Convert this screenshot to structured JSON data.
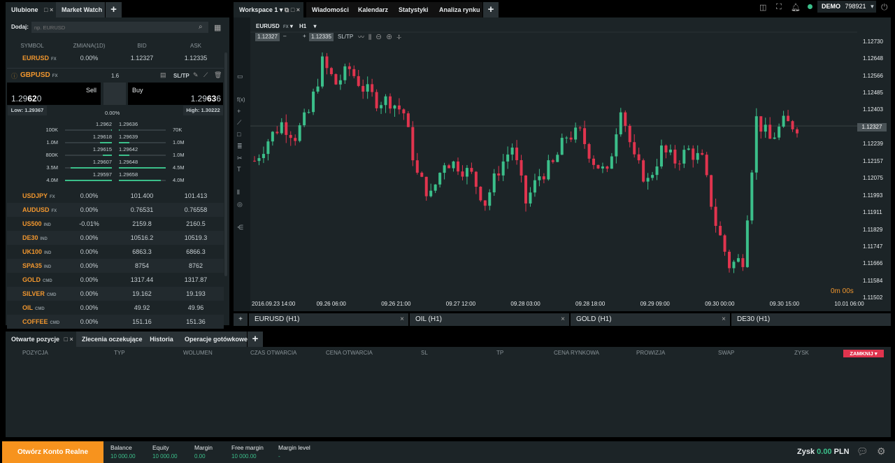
{
  "left_panel": {
    "tabs": [
      {
        "label": "Ulubione"
      },
      {
        "label": "Market Watch"
      }
    ],
    "add_label": "Dodaj:",
    "search_placeholder": "np. EURUSD",
    "columns": [
      "SYMBOL",
      "ZMIANA(1D)",
      "BID",
      "ASK"
    ],
    "first": {
      "symbol": "EURUSD",
      "type": "FX",
      "change": "0.00%",
      "bid": "1.12327",
      "ask": "1.12335"
    },
    "expanded": {
      "symbol": "GBPUSD",
      "type": "FX",
      "spread": "1.6",
      "sltp": "SL/TP",
      "sell_label": "Sell",
      "buy_label": "Buy",
      "sell_pre": "1.29",
      "sell_big": "62",
      "sell_post": "0",
      "buy_pre": "1.29",
      "buy_big": "63",
      "buy_post": "6",
      "low": "Low: 1.29367",
      "high": "High: 1.30222",
      "change": "0.00%",
      "book": [
        {
          "bid_vol": "100K",
          "bid": "1.2962",
          "ask": "1.29636",
          "ask_vol": "70K",
          "bid_fill": 0.02,
          "ask_fill": 0.02
        },
        {
          "bid_vol": "1.0M",
          "bid": "1.29618",
          "ask": "1.29639",
          "ask_vol": "1.0M",
          "bid_fill": 0.25,
          "ask_fill": 0.22
        },
        {
          "bid_vol": "800K",
          "bid": "1.29615",
          "ask": "1.29642",
          "ask_vol": "1.0M",
          "bid_fill": 0.2,
          "ask_fill": 0.22
        },
        {
          "bid_vol": "3.5M",
          "bid": "1.29607",
          "ask": "1.29648",
          "ask_vol": "4.5M",
          "bid_fill": 0.88,
          "ask_fill": 1.0
        },
        {
          "bid_vol": "4.0M",
          "bid": "1.29597",
          "ask": "1.29658",
          "ask_vol": "4.0M",
          "bid_fill": 1.0,
          "ask_fill": 0.89
        }
      ]
    },
    "rows": [
      {
        "symbol": "USDJPY",
        "type": "FX",
        "change": "0.00%",
        "bid": "101.400",
        "ask": "101.413"
      },
      {
        "symbol": "AUDUSD",
        "type": "FX",
        "change": "0.00%",
        "bid": "0.76531",
        "ask": "0.76558"
      },
      {
        "symbol": "US500",
        "type": "IND",
        "change": "-0.01%",
        "bid": "2159.8",
        "ask": "2160.5"
      },
      {
        "symbol": "DE30",
        "type": "IND",
        "change": "0.00%",
        "bid": "10516.2",
        "ask": "10519.3"
      },
      {
        "symbol": "UK100",
        "type": "IND",
        "change": "0.00%",
        "bid": "6863.3",
        "ask": "6866.3"
      },
      {
        "symbol": "SPA35",
        "type": "IND",
        "change": "0.00%",
        "bid": "8754",
        "ask": "8762"
      },
      {
        "symbol": "GOLD",
        "type": "CMD",
        "change": "0.00%",
        "bid": "1317.44",
        "ask": "1317.87"
      },
      {
        "symbol": "SILVER",
        "type": "CMD",
        "change": "0.00%",
        "bid": "19.162",
        "ask": "19.193"
      },
      {
        "symbol": "OIL",
        "type": "CMD",
        "change": "0.00%",
        "bid": "49.92",
        "ask": "49.96"
      },
      {
        "symbol": "COFFEE",
        "type": "CMD",
        "change": "0.00%",
        "bid": "151.16",
        "ask": "151.36"
      }
    ]
  },
  "top_tabs": [
    {
      "label": "Workspace 1"
    },
    {
      "label": "Wiadomości"
    },
    {
      "label": "Kalendarz"
    },
    {
      "label": "Statystyki"
    },
    {
      "label": "Analiza rynku"
    }
  ],
  "account": {
    "mode": "DEMO",
    "number": "798921",
    "status_color": "#3bbf8a"
  },
  "chart": {
    "symbol": "EURUSD",
    "type": "FX",
    "interval": "H1",
    "sell": "1.12327",
    "buy": "1.12335",
    "sltp": "SL/TP",
    "current_price": "1.12327",
    "timer": "0m 00s",
    "y_labels": [
      "1.12730",
      "1.12648",
      "1.12566",
      "1.12485",
      "1.12403",
      "1.12327",
      "1.12239",
      "1.12157",
      "1.12075",
      "1.11993",
      "1.11911",
      "1.11829",
      "1.11747",
      "1.11666",
      "1.11584",
      "1.11502"
    ],
    "x_labels": [
      "2016.09.23 14:00",
      "09.26 06:00",
      "09.26 21:00",
      "09.27 12:00",
      "09.28 03:00",
      "09.28 18:00",
      "09.29 09:00",
      "09.30 00:00",
      "09.30 15:00",
      "10.01 06:00"
    ],
    "closes": [
      1.1216,
      1.1226,
      1.1234,
      1.1228,
      1.1239,
      1.1263,
      1.1253,
      1.126,
      1.1251,
      1.1245,
      1.1245,
      1.1239,
      1.1209,
      1.1199,
      1.1216,
      1.1214,
      1.1209,
      1.1196,
      1.1212,
      1.1223,
      1.1196,
      1.1209,
      1.1214,
      1.1228,
      1.1229,
      1.1216,
      1.1209,
      1.1243,
      1.1216,
      1.1206,
      1.1221,
      1.1216,
      1.1221,
      1.1216,
      1.1186,
      1.1166,
      1.1169,
      1.1236,
      1.1226,
      1.1234,
      1.12327
    ],
    "up_color": "#3bbf8a",
    "down_color": "#e0344e",
    "tabs": [
      {
        "label": "EURUSD (H1)"
      },
      {
        "label": "OIL (H1)"
      },
      {
        "label": "GOLD (H1)"
      },
      {
        "label": "DE30 (H1)"
      }
    ]
  },
  "positions": {
    "tabs": [
      {
        "label": "Otwarte pozycje"
      },
      {
        "label": "Zlecenia oczekujące"
      },
      {
        "label": "Historia"
      },
      {
        "label": "Operacje gotówkowe"
      }
    ],
    "columns": [
      "POZYCJA",
      "TYP",
      "WOLUMEN",
      "CZAS OTWARCIA",
      "CENA OTWARCIA",
      "SL",
      "TP",
      "CENA RYNKOWA",
      "PROWIZJA",
      "SWAP",
      "ZYSK"
    ],
    "close_all": "ZAMKNIJ"
  },
  "footer": {
    "open_real": "Otwórz Konto Realne",
    "stats": [
      {
        "label": "Balance",
        "value": "10 000.00"
      },
      {
        "label": "Equity",
        "value": "10 000.00"
      },
      {
        "label": "Margin",
        "value": "0.00"
      },
      {
        "label": "Free margin",
        "value": "10 000.00"
      },
      {
        "label": "Margin level",
        "value": "-"
      }
    ],
    "profit_label": "Zysk",
    "profit_value": "0.00",
    "currency": "PLN"
  }
}
